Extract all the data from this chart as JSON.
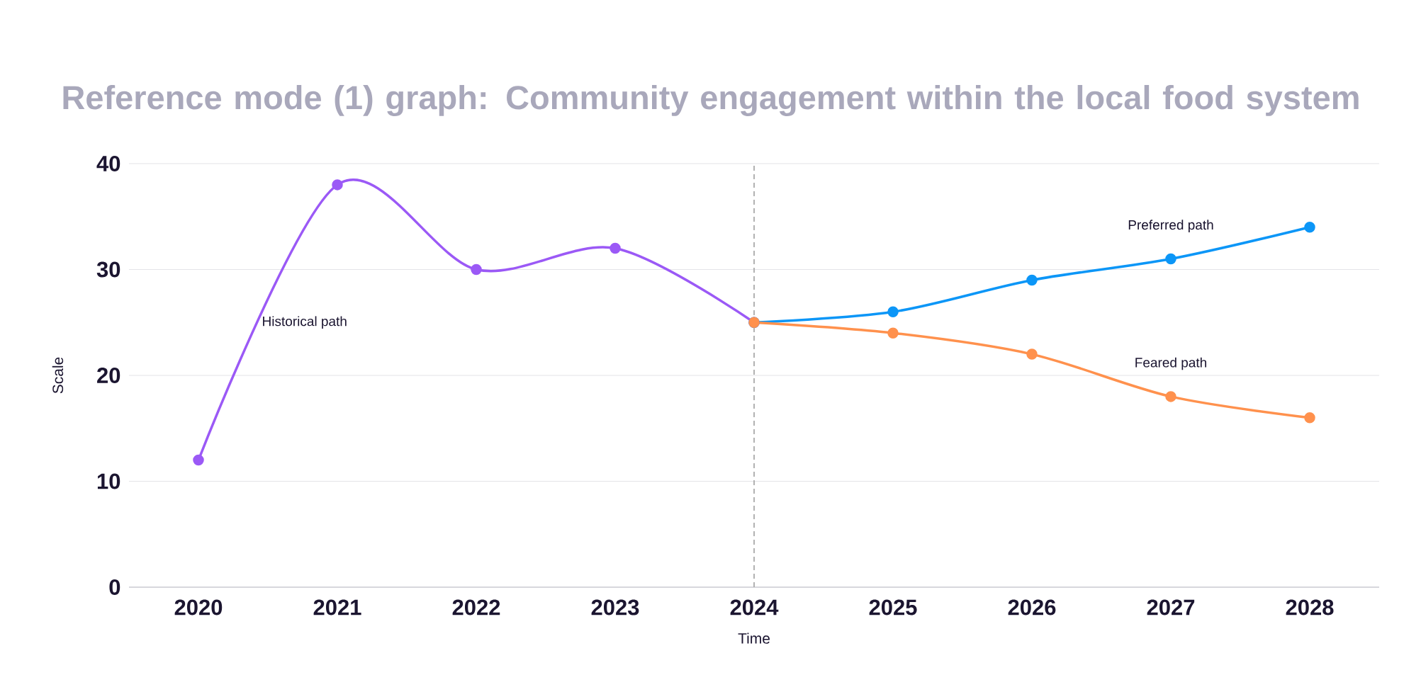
{
  "chart_data": {
    "type": "line",
    "title": "Reference mode (1) graph: Community engagement within the local food system",
    "xlabel": "Time",
    "ylabel": "Scale",
    "series": [
      {
        "name": "Historical path",
        "color": "#9b59f6",
        "x": [
          2020,
          2021,
          2022,
          2023,
          2024
        ],
        "values": [
          12,
          38,
          30,
          32,
          25
        ]
      },
      {
        "name": "Preferred path",
        "color": "#0c96f7",
        "x": [
          2024,
          2025,
          2026,
          2027,
          2028
        ],
        "values": [
          25,
          26,
          29,
          31,
          34
        ]
      },
      {
        "name": "Feared path",
        "color": "#ff914d",
        "x": [
          2024,
          2025,
          2026,
          2027,
          2028
        ],
        "values": [
          25,
          24,
          22,
          18,
          16
        ]
      }
    ],
    "xlim": [
      2019.5,
      2028.5
    ],
    "ylim": [
      0,
      40
    ],
    "xticks": [
      2020,
      2021,
      2022,
      2023,
      2024,
      2025,
      2026,
      2027,
      2028
    ],
    "yticks": [
      0,
      10,
      20,
      30,
      40
    ],
    "ref_lines": [
      {
        "axis": "x",
        "value": 2024,
        "color": "#aaaaaa",
        "line_style": "dashed"
      }
    ],
    "grid": "y",
    "marker": "circle",
    "line_style": "solid"
  }
}
